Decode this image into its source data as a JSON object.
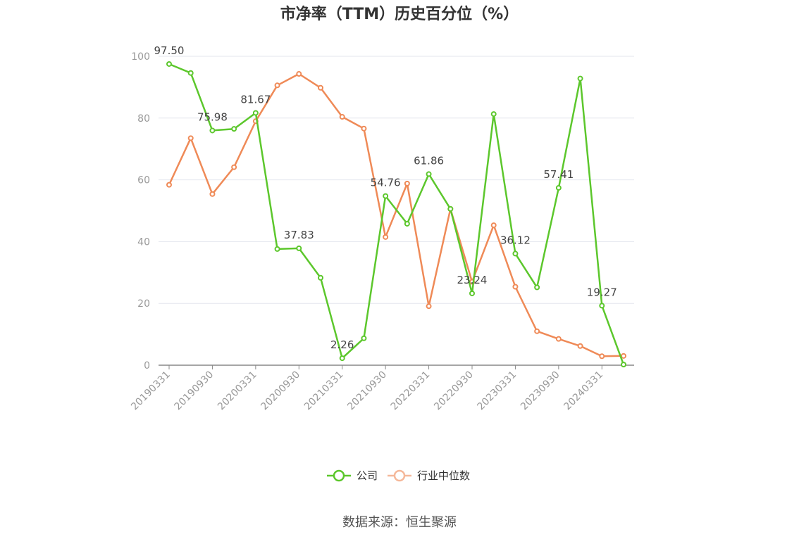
{
  "source_note": "数据来源：恒生聚源",
  "colors": {
    "company": "#5cc72c",
    "industry": "#ef8a57",
    "grid": "#e3e6ee",
    "axis": "#999999"
  },
  "chart_data": {
    "type": "line",
    "title": "市净率（TTM）历史百分位（%）",
    "xlabel": "",
    "ylabel": "",
    "ylim": [
      0,
      100
    ],
    "yticks": [
      0,
      20,
      40,
      60,
      80,
      100
    ],
    "grid": true,
    "legend_position": "bottom",
    "x": [
      "20190331",
      "20190630",
      "20190930",
      "20191231",
      "20200331",
      "20200630",
      "20200930",
      "20201231",
      "20210331",
      "20210630",
      "20210930",
      "20211231",
      "20220331",
      "20220630",
      "20220930",
      "20221231",
      "20230331",
      "20230630",
      "20230930",
      "20231231",
      "20240331",
      "20240630"
    ],
    "xtick_labels": [
      "20190331",
      "20190930",
      "20200331",
      "20200930",
      "20210331",
      "20210930",
      "20220331",
      "20220930",
      "20230331",
      "20230930",
      "20240331"
    ],
    "series": [
      {
        "name": "公司",
        "values": [
          97.5,
          94.6,
          75.98,
          76.5,
          81.67,
          37.6,
          37.83,
          28.3,
          2.26,
          8.7,
          54.76,
          45.8,
          61.86,
          50.6,
          23.24,
          81.3,
          36.12,
          25.2,
          57.41,
          92.8,
          19.27,
          0.2
        ],
        "labels": [
          "97.50",
          "",
          "75.98",
          "",
          "81.67",
          "",
          "37.83",
          "",
          "2.26",
          "",
          "54.76",
          "",
          "61.86",
          "",
          "23.24",
          "",
          "36.12",
          "",
          "57.41",
          "",
          "19.27",
          ""
        ]
      },
      {
        "name": "行业中位数",
        "values": [
          58.4,
          73.5,
          55.4,
          64.1,
          79.0,
          90.6,
          94.3,
          89.8,
          80.4,
          76.6,
          41.5,
          58.8,
          19.1,
          50.6,
          27.0,
          45.3,
          25.4,
          11.0,
          8.5,
          6.2,
          2.9,
          3.0
        ]
      }
    ]
  }
}
